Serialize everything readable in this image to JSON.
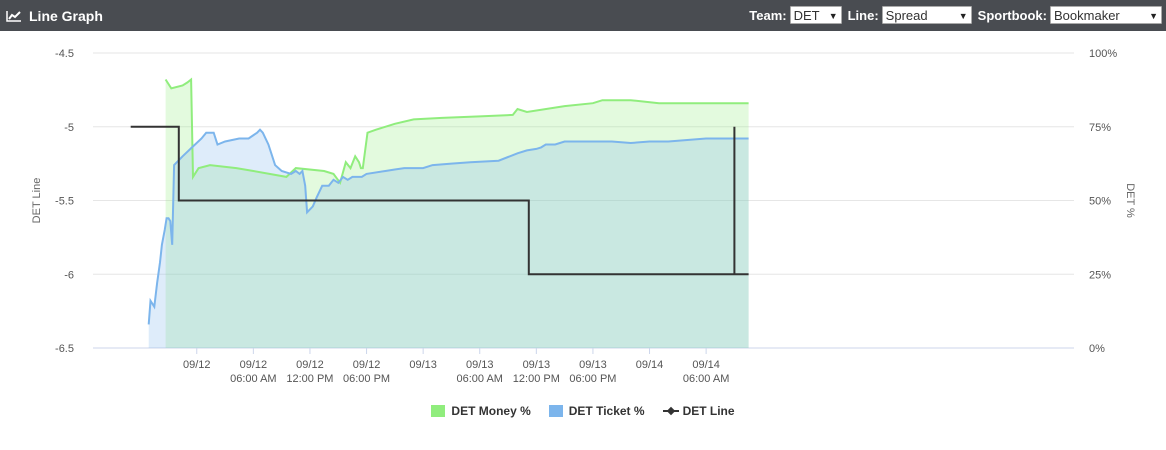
{
  "header": {
    "title": "Line Graph",
    "team_label": "Team:",
    "team_value": "DET",
    "line_label": "Line:",
    "line_value": "Spread",
    "book_label": "Sportbook:",
    "book_value": "Bookmaker"
  },
  "chart_data": {
    "type": "line",
    "title": "",
    "ylabel_left": "DET Line",
    "ylabel_right": "DET %",
    "y_left_lim": [
      -6.5,
      -4.5
    ],
    "y_left_ticks": [
      "-4.5",
      "-5",
      "-5.5",
      "-6",
      "-6.5"
    ],
    "y_right_lim": [
      0,
      100
    ],
    "y_right_ticks": [
      "100%",
      "75%",
      "50%",
      "25%",
      "0%"
    ],
    "x_lim": [
      -5,
      99
    ],
    "x_ticks": [
      {
        "x": 6,
        "line1": "09/12",
        "line2": ""
      },
      {
        "x": 12,
        "line1": "09/12",
        "line2": "06:00 AM"
      },
      {
        "x": 18,
        "line1": "09/12",
        "line2": "12:00 PM"
      },
      {
        "x": 24,
        "line1": "09/12",
        "line2": "06:00 PM"
      },
      {
        "x": 30,
        "line1": "09/13",
        "line2": ""
      },
      {
        "x": 36,
        "line1": "09/13",
        "line2": "06:00 AM"
      },
      {
        "x": 42,
        "line1": "09/13",
        "line2": "12:00 PM"
      },
      {
        "x": 48,
        "line1": "09/13",
        "line2": "06:00 PM"
      },
      {
        "x": 54,
        "line1": "09/14",
        "line2": ""
      },
      {
        "x": 60,
        "line1": "09/14",
        "line2": "06:00 AM"
      }
    ],
    "grid": true,
    "legend_position": "bottom",
    "colors": {
      "money": "#90ed7d",
      "ticket": "#7cb5ec",
      "line": "#333333"
    },
    "series": [
      {
        "name": "DET Money %",
        "axis": "right",
        "points": [
          [
            2.7,
            91
          ],
          [
            3.3,
            88
          ],
          [
            4.5,
            89
          ],
          [
            5.0,
            90
          ],
          [
            5.4,
            91
          ],
          [
            5.6,
            58
          ],
          [
            6.2,
            61
          ],
          [
            7.4,
            62
          ],
          [
            10.2,
            61
          ],
          [
            12.0,
            60
          ],
          [
            15.5,
            58
          ],
          [
            16.5,
            61
          ],
          [
            19.5,
            60
          ],
          [
            20.5,
            59
          ],
          [
            21.2,
            56
          ],
          [
            21.8,
            63
          ],
          [
            22.3,
            61
          ],
          [
            22.8,
            65
          ],
          [
            23.2,
            63
          ],
          [
            23.4,
            61
          ],
          [
            23.6,
            61
          ],
          [
            24.1,
            73
          ],
          [
            25.0,
            74
          ],
          [
            27.0,
            76
          ],
          [
            29.0,
            77.5
          ],
          [
            32.0,
            78
          ],
          [
            36.0,
            78.5
          ],
          [
            39.5,
            79
          ],
          [
            40.0,
            81
          ],
          [
            41.0,
            80
          ],
          [
            45.0,
            82
          ],
          [
            48.0,
            83
          ],
          [
            49.0,
            84
          ],
          [
            52.0,
            84
          ],
          [
            55.0,
            83
          ],
          [
            64.5,
            83
          ]
        ]
      },
      {
        "name": "DET Ticket %",
        "axis": "right",
        "points": [
          [
            0.9,
            8
          ],
          [
            1.1,
            16
          ],
          [
            1.5,
            14
          ],
          [
            1.8,
            22
          ],
          [
            2.1,
            29
          ],
          [
            2.3,
            35
          ],
          [
            2.6,
            40
          ],
          [
            2.8,
            44
          ],
          [
            3.0,
            44
          ],
          [
            3.2,
            43
          ],
          [
            3.4,
            35
          ],
          [
            3.6,
            62
          ],
          [
            4.5,
            65
          ],
          [
            5.5,
            68
          ],
          [
            6.5,
            71
          ],
          [
            7.0,
            73
          ],
          [
            7.8,
            73
          ],
          [
            8.2,
            69
          ],
          [
            9.0,
            70
          ],
          [
            10.5,
            71
          ],
          [
            11.5,
            71
          ],
          [
            12.4,
            73
          ],
          [
            12.7,
            74
          ],
          [
            13.0,
            73
          ],
          [
            13.6,
            69
          ],
          [
            14.3,
            62
          ],
          [
            15.0,
            60
          ],
          [
            16.0,
            59
          ],
          [
            16.5,
            60
          ],
          [
            16.9,
            59
          ],
          [
            17.2,
            60
          ],
          [
            17.5,
            55
          ],
          [
            17.7,
            46
          ],
          [
            18.3,
            48
          ],
          [
            18.7,
            51
          ],
          [
            19.3,
            55
          ],
          [
            20.0,
            55
          ],
          [
            20.5,
            57
          ],
          [
            21.0,
            56
          ],
          [
            21.5,
            58
          ],
          [
            22.0,
            57
          ],
          [
            22.5,
            58
          ],
          [
            23.0,
            58
          ],
          [
            23.5,
            58
          ],
          [
            24.0,
            59
          ],
          [
            26.0,
            60
          ],
          [
            27.0,
            60.5
          ],
          [
            28.0,
            61
          ],
          [
            29.0,
            61
          ],
          [
            30.0,
            61
          ],
          [
            31.0,
            62
          ],
          [
            33.0,
            62.5
          ],
          [
            35.0,
            63
          ],
          [
            38.0,
            63.5
          ],
          [
            40.0,
            66
          ],
          [
            41.0,
            67
          ],
          [
            42.0,
            67.5
          ],
          [
            42.5,
            68
          ],
          [
            43.0,
            69
          ],
          [
            44.0,
            69
          ],
          [
            45.0,
            70
          ],
          [
            48.0,
            70
          ],
          [
            50.0,
            70
          ],
          [
            52.0,
            69.5
          ],
          [
            54.0,
            70
          ],
          [
            56.0,
            70
          ],
          [
            58.0,
            70.5
          ],
          [
            60.0,
            71
          ],
          [
            64.5,
            71
          ]
        ]
      },
      {
        "name": "DET Line",
        "axis": "left",
        "points": [
          [
            -1.0,
            -5
          ],
          [
            4.1,
            -5
          ],
          [
            4.1,
            -5.5
          ],
          [
            41.2,
            -5.5
          ],
          [
            41.2,
            -6
          ],
          [
            63.0,
            -6
          ],
          [
            63.0,
            -5
          ],
          [
            63.0,
            -6
          ],
          [
            64.5,
            -6
          ]
        ]
      }
    ]
  }
}
